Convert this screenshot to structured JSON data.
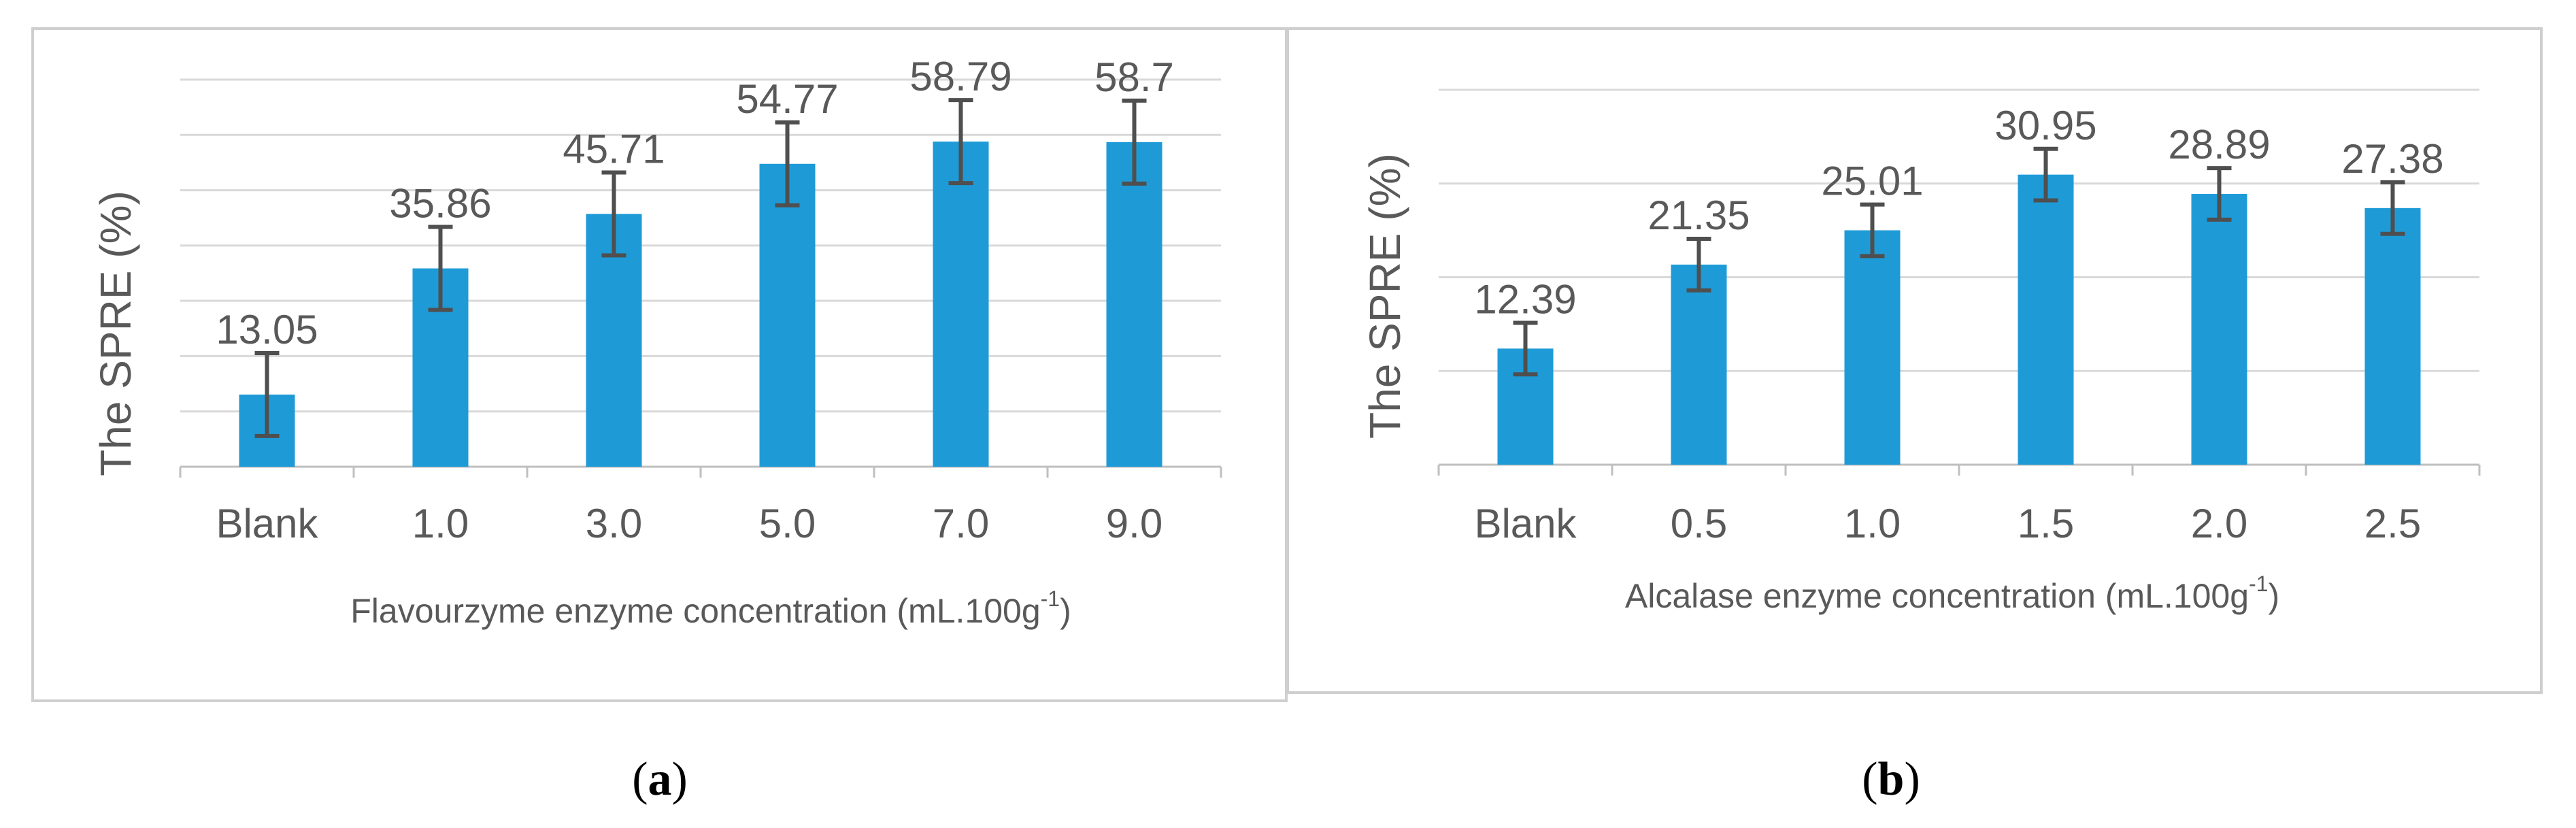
{
  "chart_data": [
    {
      "type": "bar",
      "panel_label": {
        "pre": "(",
        "letter": "a",
        "post": ")"
      },
      "categories": [
        "Blank",
        "1.0",
        "3.0",
        "5.0",
        "7.0",
        "9.0"
      ],
      "values": [
        13.05,
        35.86,
        45.71,
        54.77,
        58.79,
        58.7
      ],
      "data_labels": [
        "13.05",
        "35.86",
        "45.71",
        "54.77",
        "58.79",
        "58.7"
      ],
      "error": [
        7.5,
        7.5,
        7.5,
        7.5,
        7.5,
        7.5
      ],
      "xlabel": {
        "main": "Flavourzyme enzyme concentration (mL.100g",
        "sup": "-1",
        "end": ")"
      },
      "ylabel": "The SPRE (%)",
      "ylim": [
        0,
        70
      ],
      "grid": true,
      "gridlines": [
        0,
        10,
        20,
        30,
        40,
        50,
        60,
        70
      ]
    },
    {
      "type": "bar",
      "panel_label": {
        "pre": "(",
        "letter": "b",
        "post": ")"
      },
      "categories": [
        "Blank",
        "0.5",
        "1.0",
        "1.5",
        "2.0",
        "2.5"
      ],
      "values": [
        12.39,
        21.35,
        25.01,
        30.95,
        28.89,
        27.38
      ],
      "data_labels": [
        "12.39",
        "21.35",
        "25.01",
        "30.95",
        "28.89",
        "27.38"
      ],
      "error": [
        2.75,
        2.75,
        2.75,
        2.75,
        2.75,
        2.75
      ],
      "xlabel": {
        "main": "Alcalase enzyme concentration (mL.100g",
        "sup": "-1",
        "end": ")"
      },
      "ylabel": "The SPRE (%)",
      "ylim": [
        0,
        40
      ],
      "grid": true,
      "gridlines": [
        0,
        10,
        20,
        30,
        40
      ]
    }
  ]
}
